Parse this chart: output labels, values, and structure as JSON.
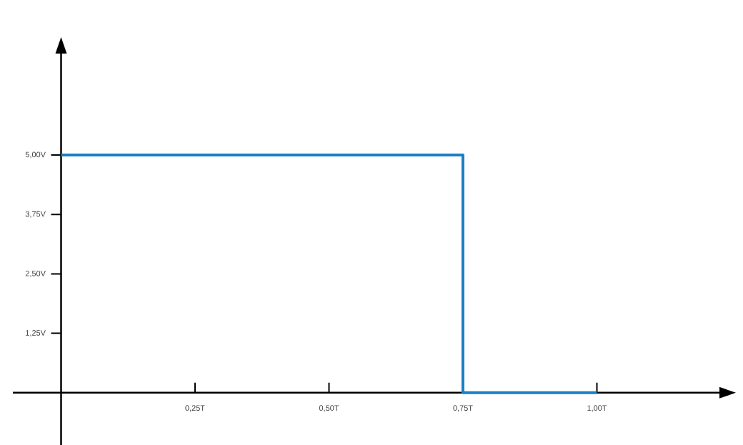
{
  "chart_data": {
    "type": "step",
    "x": [
      0,
      0.75,
      1
    ],
    "values": [
      5,
      0,
      0
    ],
    "color": "#1a80c4",
    "xlim": [
      -0.09,
      1.23
    ],
    "ylim": [
      -1.1,
      7.15
    ],
    "xticks": [
      {
        "value": 0.25,
        "label": "0,25T"
      },
      {
        "value": 0.5,
        "label": "0,50T"
      },
      {
        "value": 0.75,
        "label": "0,75T"
      },
      {
        "value": 1,
        "label": "1,00T"
      }
    ],
    "yticks": [
      {
        "value": 1.25,
        "label": "1,25V"
      },
      {
        "value": 2.5,
        "label": "2,50V"
      },
      {
        "value": 3.75,
        "label": "3,75V"
      },
      {
        "value": 5,
        "label": "5,00V"
      }
    ]
  }
}
